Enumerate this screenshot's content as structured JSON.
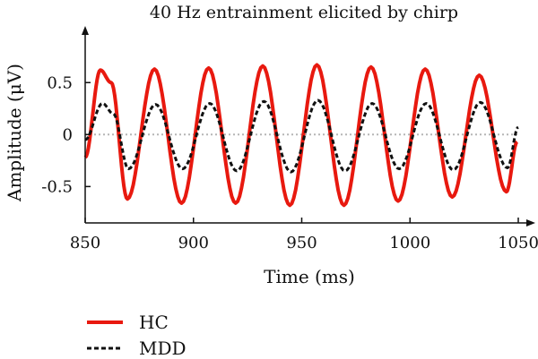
{
  "chart_data": {
    "type": "line",
    "title": "40 Hz entrainment elicited by chirp",
    "xlabel": "Time (ms)",
    "ylabel": "Amplitude (μV)",
    "xlim": [
      850,
      1050
    ],
    "ylim": [
      -0.85,
      0.95
    ],
    "xticks": [
      850,
      900,
      950,
      1000,
      1050
    ],
    "xtick_labels": [
      "850",
      "900",
      "950",
      "1000",
      "1050"
    ],
    "yticks": [
      0.5,
      0,
      -0.5
    ],
    "ytick_labels": [
      "0.5",
      "0",
      "-0.5"
    ],
    "zero_line": true,
    "legend_position": "bottom-left",
    "series": [
      {
        "name": "HC",
        "color": "#e8190f",
        "line_style": "solid",
        "x": [
          850,
          857,
          862,
          869.5,
          882,
          894.5,
          907,
          919.5,
          932,
          944.5,
          957,
          969.5,
          982,
          994.5,
          1007,
          1019.5,
          1032,
          1044.5,
          1049.5
        ],
        "y": [
          -0.22,
          0.62,
          0.5,
          -0.62,
          0.63,
          -0.66,
          0.64,
          -0.66,
          0.66,
          -0.68,
          0.67,
          -0.68,
          0.65,
          -0.64,
          0.63,
          -0.6,
          0.57,
          -0.55,
          -0.07
        ]
      },
      {
        "name": "MDD",
        "color": "#111111",
        "line_style": "dashed",
        "x": [
          850,
          858,
          863,
          870,
          882.5,
          895,
          907.5,
          920,
          932.5,
          945,
          957.5,
          970,
          982.5,
          995,
          1007.5,
          1020,
          1032.5,
          1045,
          1050
        ],
        "y": [
          -0.05,
          0.3,
          0.2,
          -0.33,
          0.29,
          -0.33,
          0.3,
          -0.35,
          0.32,
          -0.36,
          0.33,
          -0.35,
          0.3,
          -0.33,
          0.3,
          -0.34,
          0.31,
          -0.32,
          0.07
        ]
      }
    ]
  }
}
